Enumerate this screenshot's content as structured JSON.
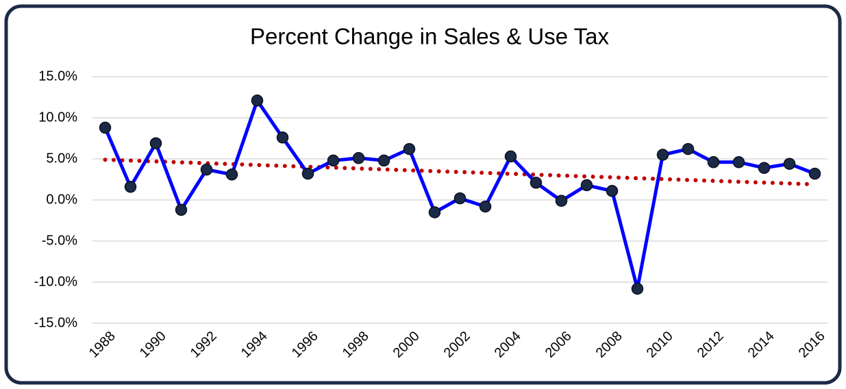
{
  "chart_data": {
    "type": "line",
    "title": "Percent Change in Sales & Use Tax",
    "x": [
      1988,
      1989,
      1990,
      1991,
      1992,
      1993,
      1994,
      1995,
      1996,
      1997,
      1998,
      1999,
      2000,
      2001,
      2002,
      2003,
      2004,
      2005,
      2006,
      2007,
      2008,
      2009,
      2010,
      2011,
      2012,
      2013,
      2014,
      2015,
      2016
    ],
    "series": [
      {
        "color": "#0000ff",
        "marker_color": "#1b2a47",
        "values": [
          8.8,
          1.6,
          6.9,
          -1.2,
          3.7,
          3.1,
          12.1,
          7.6,
          3.2,
          4.8,
          5.1,
          4.8,
          6.2,
          -1.5,
          0.2,
          -0.8,
          5.3,
          2.1,
          -0.1,
          1.8,
          1.1,
          -10.8,
          5.5,
          6.2,
          4.6,
          4.6,
          3.9,
          4.4,
          3.2
        ]
      }
    ],
    "trendline": {
      "color": "#c00000",
      "x": [
        1988,
        2016
      ],
      "values": [
        4.9,
        1.9
      ]
    },
    "xlim": [
      1987.5,
      2016.5
    ],
    "xticks": [
      1988,
      1990,
      1992,
      1994,
      1996,
      1998,
      2000,
      2002,
      2004,
      2006,
      2008,
      2010,
      2012,
      2014,
      2016
    ],
    "ylim": [
      -15,
      15
    ],
    "yticks": [
      {
        "value": -15,
        "label": "-15.0%"
      },
      {
        "value": -10,
        "label": "-10.0%"
      },
      {
        "value": -5,
        "label": "-5.0%"
      },
      {
        "value": 0,
        "label": "0.0%"
      },
      {
        "value": 5,
        "label": "5.0%"
      },
      {
        "value": 10,
        "label": "10.0%"
      },
      {
        "value": 15,
        "label": "15.0%"
      }
    ],
    "grid": true
  }
}
